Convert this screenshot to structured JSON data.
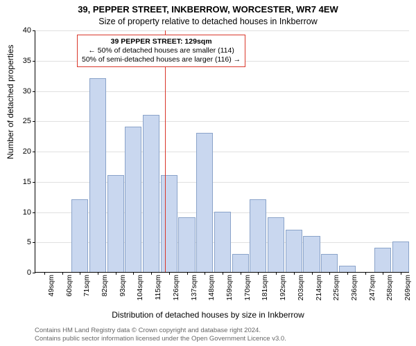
{
  "title_main": "39, PEPPER STREET, INKBERROW, WORCESTER, WR7 4EW",
  "title_sub": "Size of property relative to detached houses in Inkberrow",
  "ylabel": "Number of detached properties",
  "xlabel": "Distribution of detached houses by size in Inkberrow",
  "footer_line1": "Contains HM Land Registry data © Crown copyright and database right 2024.",
  "footer_line2": "Contains public sector information licensed under the Open Government Licence v3.0.",
  "histogram": {
    "type": "histogram",
    "categories": [
      "49sqm",
      "60sqm",
      "71sqm",
      "82sqm",
      "93sqm",
      "104sqm",
      "115sqm",
      "126sqm",
      "137sqm",
      "148sqm",
      "159sqm",
      "170sqm",
      "181sqm",
      "192sqm",
      "203sqm",
      "214sqm",
      "225sqm",
      "236sqm",
      "247sqm",
      "258sqm",
      "269sqm"
    ],
    "values": [
      0,
      0,
      12,
      32,
      16,
      24,
      26,
      16,
      9,
      23,
      10,
      3,
      12,
      9,
      7,
      6,
      3,
      1,
      0,
      4,
      5
    ],
    "bar_color": "#c9d7ef",
    "bar_border": "#8aa3c9",
    "ylim": [
      0,
      40
    ],
    "ytick_step": 5,
    "grid_color": "#e0e0e0",
    "background_color": "#ffffff",
    "refline_value": 129,
    "refline_color": "#d9362a",
    "title_fontsize": 13,
    "label_fontsize": 12,
    "tick_fontsize": 11
  },
  "annotation": {
    "line1": "39 PEPPER STREET: 129sqm",
    "line2": "← 50% of detached houses are smaller (114)",
    "line3": "50% of semi-detached houses are larger (116) →",
    "border_color": "#d9362a"
  }
}
